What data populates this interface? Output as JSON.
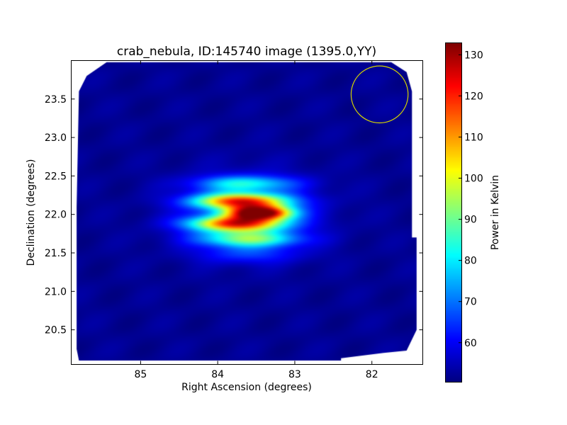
{
  "chart_data": {
    "type": "heatmap",
    "title": "crab_nebula, ID:145740 image (1395.0,YY)",
    "xlabel": "Right Ascension (degrees)",
    "ylabel": "Declination (degrees)",
    "xlim": [
      85.9,
      81.34
    ],
    "ylim": [
      20.05,
      24.0
    ],
    "xticks": [
      85,
      84,
      83,
      82
    ],
    "xtick_labels": [
      "85",
      "84",
      "83",
      "82"
    ],
    "yticks": [
      20.5,
      21.0,
      21.5,
      22.0,
      22.5,
      23.0,
      23.5
    ],
    "ytick_labels": [
      "20.5",
      "21.0",
      "21.5",
      "22.0",
      "22.5",
      "23.0",
      "23.5"
    ],
    "colormap": "jet",
    "colorbar": {
      "label": "Power in Kelvin",
      "range": [
        50.4,
        132.9
      ],
      "ticks": [
        60,
        70,
        80,
        90,
        100,
        110,
        120,
        130
      ],
      "tick_labels": [
        "60",
        "70",
        "80",
        "90",
        "100",
        "110",
        "120",
        "130"
      ]
    },
    "background_level": 52,
    "components": [
      {
        "ra": 83.65,
        "dec": 22.4,
        "amplitude": 26,
        "sigma_ra": 0.45,
        "sigma_dec": 0.07
      },
      {
        "ra": 83.7,
        "dec": 22.17,
        "amplitude": 62,
        "sigma_ra": 0.42,
        "sigma_dec": 0.07
      },
      {
        "ra": 83.45,
        "dec": 22.02,
        "amplitude": 80,
        "sigma_ra": 0.28,
        "sigma_dec": 0.06
      },
      {
        "ra": 83.75,
        "dec": 21.88,
        "amplitude": 62,
        "sigma_ra": 0.42,
        "sigma_dec": 0.07
      },
      {
        "ra": 83.6,
        "dec": 21.68,
        "amplitude": 34,
        "sigma_ra": 0.45,
        "sigma_dec": 0.07
      },
      {
        "ra": 83.6,
        "dec": 21.48,
        "amplitude": 10,
        "sigma_ra": 0.45,
        "sigma_dec": 0.08
      },
      {
        "ra": 83.6,
        "dec": 22.0,
        "amplitude": 12,
        "sigma_ra": 0.6,
        "sigma_dec": 0.35
      }
    ],
    "coverage_outline": [
      [
        85.44,
        23.98
      ],
      [
        81.75,
        23.98
      ],
      [
        81.55,
        23.85
      ],
      [
        81.48,
        23.6
      ],
      [
        81.48,
        21.7
      ],
      [
        81.42,
        21.7
      ],
      [
        81.42,
        20.5
      ],
      [
        81.55,
        20.23
      ],
      [
        81.85,
        20.2
      ],
      [
        82.4,
        20.13
      ],
      [
        82.4,
        20.1
      ],
      [
        85.8,
        20.1
      ],
      [
        85.83,
        20.25
      ],
      [
        85.83,
        22.1
      ],
      [
        85.8,
        23.6
      ],
      [
        85.7,
        23.8
      ]
    ],
    "annotation_circle": {
      "ra": 81.9,
      "dec": 23.56,
      "radius_deg": 0.37,
      "color": "#d4d400"
    }
  }
}
